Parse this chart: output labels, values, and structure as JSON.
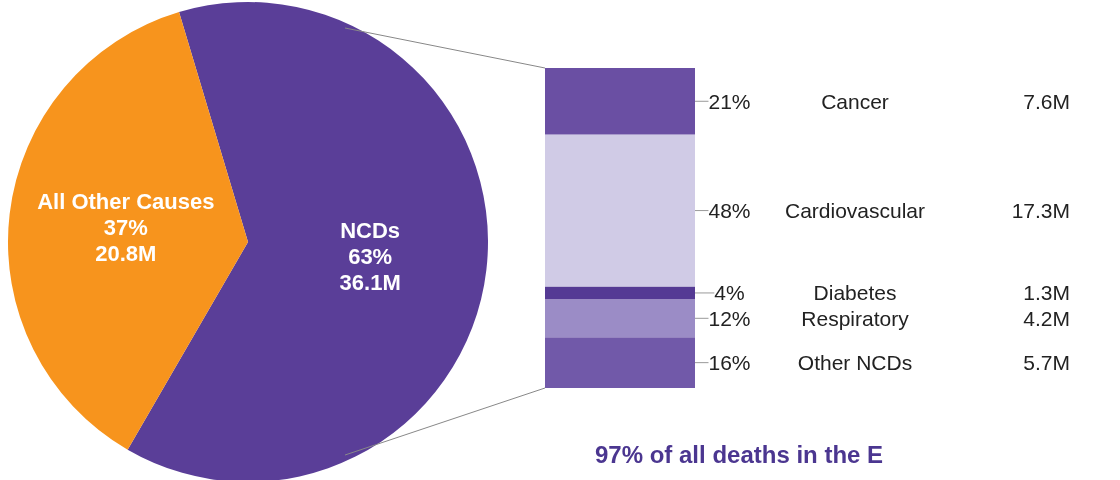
{
  "chart_data": [
    {
      "type": "pie",
      "categories": [
        "NCDs",
        "All Other Causes"
      ],
      "values": [
        63,
        37
      ],
      "colors": [
        "#5a3e98",
        "#f7941d"
      ],
      "value_labels": [
        "63%\n36.1M",
        "37%\n20.8M"
      ],
      "legend": false
    },
    {
      "type": "bar",
      "stacked": true,
      "categories": [
        null
      ],
      "legend": false,
      "series": [
        {
          "name": "Other NCDs",
          "color": "#7159a9",
          "values": [
            16
          ],
          "value_labels": [
            "16%"
          ]
        },
        {
          "name": "Respiratory",
          "color": "#9b8cc6",
          "values": [
            12
          ],
          "value_labels": [
            "12%"
          ]
        },
        {
          "name": "Diabetes",
          "color": "#553a94",
          "values": [
            4
          ],
          "value_labels": [
            "4%"
          ]
        },
        {
          "name": "Cardiovascular",
          "color": "#d0cbe6",
          "values": [
            48
          ],
          "value_labels": [
            "48%"
          ]
        },
        {
          "name": "Cancer",
          "color": "#6a4fa3",
          "values": [
            21
          ],
          "value_labels": [
            "21%"
          ]
        }
      ],
      "annotations": [
        "7.6M",
        "17.3M",
        "1.3M",
        "4.2M",
        "5.7M",
        "97% of all deaths in the E"
      ]
    }
  ]
}
